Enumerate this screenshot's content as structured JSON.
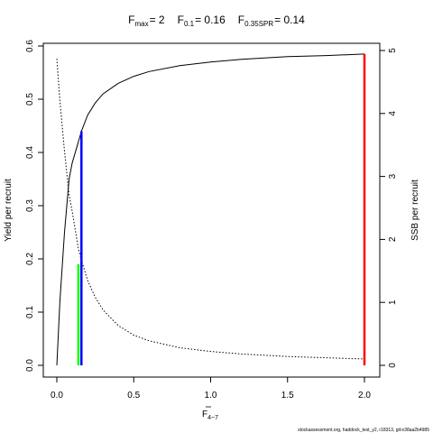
{
  "chart_data": {
    "type": "line",
    "title_parts": {
      "fmax_sym": "F",
      "fmax_sub": "max",
      "fmax_val": "= 2",
      "f01_sym": "F",
      "f01_sub": "0.1",
      "f01_val": "= 0.16",
      "fspr_sym": "F",
      "fspr_sub": "0.35SPR",
      "fspr_val": "= 0.14"
    },
    "xlabel": {
      "main": "F",
      "sub": "4−7"
    },
    "ylabel": "Yield per recruit",
    "y2label": "SSB per recruit",
    "xlim": [
      0,
      2
    ],
    "ylim": [
      0,
      0.6
    ],
    "y2lim": [
      0,
      5
    ],
    "x_ticks": [
      "0.0",
      "0.5",
      "1.0",
      "1.5",
      "2.0"
    ],
    "y_ticks": [
      "0.0",
      "0.1",
      "0.2",
      "0.3",
      "0.4",
      "0.5",
      "0.6"
    ],
    "y2_ticks": [
      "0",
      "1",
      "2",
      "3",
      "4",
      "5"
    ],
    "series": [
      {
        "axis": "left",
        "style": "solid",
        "color": "#000000",
        "x": [
          0,
          0.02,
          0.05,
          0.08,
          0.1,
          0.14,
          0.16,
          0.2,
          0.25,
          0.3,
          0.4,
          0.5,
          0.6,
          0.8,
          1.0,
          1.2,
          1.5,
          1.75,
          2.0
        ],
        "y": [
          0,
          0.12,
          0.25,
          0.35,
          0.38,
          0.42,
          0.44,
          0.47,
          0.493,
          0.51,
          0.53,
          0.543,
          0.552,
          0.563,
          0.57,
          0.575,
          0.58,
          0.582,
          0.585
        ]
      },
      {
        "axis": "right",
        "style": "dotted",
        "color": "#000000",
        "x": [
          0,
          0.02,
          0.05,
          0.08,
          0.1,
          0.14,
          0.16,
          0.2,
          0.25,
          0.3,
          0.4,
          0.5,
          0.6,
          0.8,
          1.0,
          1.2,
          1.5,
          1.75,
          2.0
        ],
        "y": [
          4.87,
          4.2,
          3.4,
          2.7,
          2.45,
          1.85,
          1.67,
          1.35,
          1.08,
          0.88,
          0.63,
          0.48,
          0.39,
          0.28,
          0.22,
          0.18,
          0.14,
          0.12,
          0.1
        ]
      }
    ],
    "reference_lines": [
      {
        "label": "F0.35SPR",
        "x": 0.14,
        "y": 0.19,
        "color": "#00ff00"
      },
      {
        "label": "F0.1",
        "x": 0.16,
        "y": 0.44,
        "color": "#0000ff"
      },
      {
        "label": "Fmax",
        "x": 2.0,
        "y": 0.585,
        "color": "#ff0000"
      }
    ],
    "grid": false,
    "footer": "stockassessment.org, haddock_test_y2, r18313, git:e38aa2b4985"
  }
}
